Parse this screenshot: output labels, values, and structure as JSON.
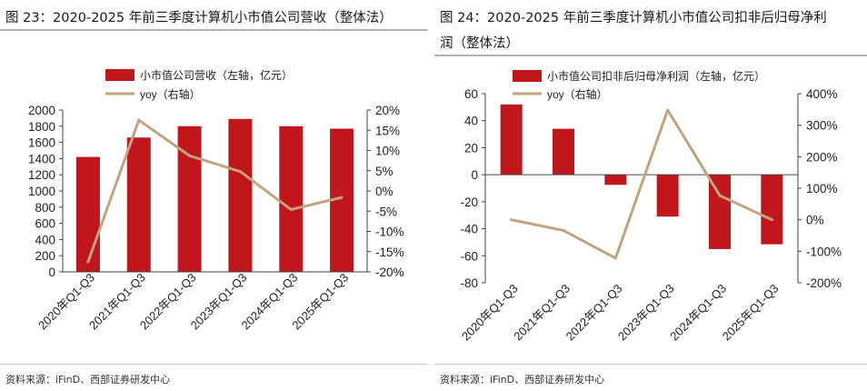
{
  "colors": {
    "bar": "#c0161c",
    "line": "#c3a27e",
    "axis": "#444444"
  },
  "charts": [
    {
      "title": "图 23：2020-2025 年前三季度计算机小市值公司营收（整体法）",
      "source": "资料来源：iFinD、西部证券研发中心",
      "legend": {
        "bar": "小市值公司营收（左轴，亿元）",
        "line": "yoy（右轴）"
      }
    },
    {
      "title_a": "图 24：2020-2025 年前三季度计算机小市值公司扣非后归母净利",
      "title_b": "润（整体法）",
      "source": "资料来源：iFinD、西部证券研发中心",
      "legend": {
        "bar": "小市值公司扣非后归母净利润（左轴，亿元）",
        "line": "yoy（右轴）"
      }
    }
  ],
  "chart_data": [
    {
      "type": "bar",
      "title": "2020-2025 年前三季度计算机小市值公司营收（整体法）",
      "categories": [
        "2020年Q1-Q3",
        "2021年Q1-Q3",
        "2022年Q1-Q3",
        "2023年Q1-Q3",
        "2024年Q1-Q3",
        "2025年Q1-Q3"
      ],
      "series": [
        {
          "name": "小市值公司营收（左轴，亿元）",
          "type": "bar",
          "axis": "left",
          "values": [
            1420,
            1660,
            1800,
            1890,
            1800,
            1770
          ]
        },
        {
          "name": "yoy（右轴）",
          "type": "line",
          "axis": "right",
          "values": [
            -17.5,
            17.5,
            8.7,
            4.8,
            -4.6,
            -1.6
          ]
        }
      ],
      "ylim_left": [
        0,
        2000
      ],
      "yticks_left": [
        "0",
        "200",
        "400",
        "600",
        "800",
        "1000",
        "1200",
        "1400",
        "1600",
        "1800",
        "2000"
      ],
      "ylim_right": [
        -20,
        20
      ],
      "yticks_right": [
        "-20%",
        "-15%",
        "-10%",
        "-5%",
        "0%",
        "5%",
        "10%",
        "15%",
        "20%"
      ],
      "legend_position": "top"
    },
    {
      "type": "bar",
      "title": "2020-2025 年前三季度计算机小市值公司扣非后归母净利润（整体法）",
      "categories": [
        "2020年Q1-Q3",
        "2021年Q1-Q3",
        "2022年Q1-Q3",
        "2023年Q1-Q3",
        "2024年Q1-Q3",
        "2025年Q1-Q3"
      ],
      "series": [
        {
          "name": "小市值公司扣非后归母净利润（左轴，亿元）",
          "type": "bar",
          "axis": "left",
          "values": [
            52,
            34,
            -7.5,
            -31,
            -55,
            -51.5
          ]
        },
        {
          "name": "yoy（右轴）",
          "type": "line",
          "axis": "right",
          "values": [
            0,
            -34,
            -122,
            348,
            77,
            0
          ]
        }
      ],
      "ylim_left": [
        -80,
        60
      ],
      "yticks_left": [
        "-80",
        "-60",
        "-40",
        "-20",
        "0",
        "20",
        "40",
        "60"
      ],
      "ylim_right": [
        -200,
        400
      ],
      "yticks_right": [
        "-200%",
        "-100%",
        "0%",
        "100%",
        "200%",
        "300%",
        "400%"
      ],
      "legend_position": "top"
    }
  ]
}
